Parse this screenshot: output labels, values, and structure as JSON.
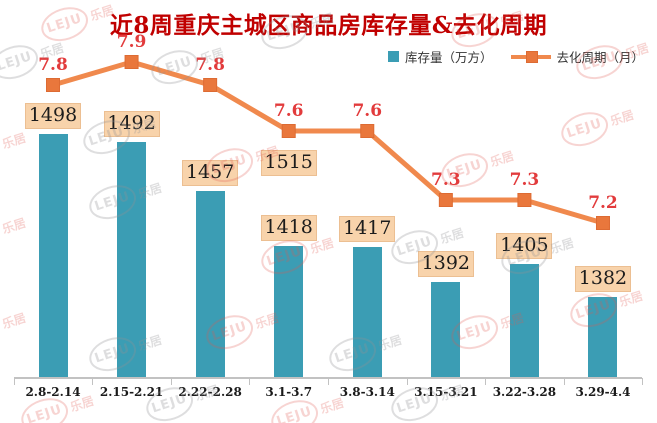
{
  "title": "近8周重庆主城区商品房库存量&去化周期",
  "legend": {
    "bars_label": "库存量（万方）",
    "line_label": "去化周期（月）",
    "position": "top-right"
  },
  "watermark": {
    "cn": "乐居",
    "en": "LEJU"
  },
  "colors": {
    "bar": "#3B9DB4",
    "bar_label_bg": "#F8D3AB",
    "bar_label_border": "#ECBF92",
    "bar_label_text": "#1C1C1C",
    "line": "#F0894D",
    "marker": "#E9773C",
    "marker_border": "#DD6B33",
    "line_label": "#E23B3C",
    "title": "#C00000",
    "axis": "#C2C2C2",
    "axis_text": "#1A1A1A",
    "legend_text": "#333333"
  },
  "chart_data": {
    "type": "bar+line",
    "categories": [
      "2.8-2.14",
      "2.15-2.21",
      "2.22-2.28",
      "3.1-3.7",
      "3.8-3.14",
      "3.15-3.21",
      "3.22-3.28",
      "3.29-4.4"
    ],
    "series": [
      {
        "name": "库存量（万方）",
        "type": "bar",
        "values": [
          1498,
          1492,
          1457,
          1418,
          1417,
          1392,
          1405,
          1382
        ]
      },
      {
        "name": "去化周期（月）",
        "type": "line",
        "values": [
          7.8,
          7.9,
          7.8,
          7.6,
          7.6,
          7.3,
          7.3,
          7.2
        ]
      }
    ],
    "annotations": [
      {
        "text": "1515",
        "category_index": 3
      }
    ],
    "title": "近8周重庆主城区商品房库存量&去化周期",
    "xlabel": "",
    "ylabel": "",
    "grid": false,
    "bar_axis_min_implied": 1324,
    "legend_position": "top-right",
    "value_labels": "on"
  }
}
